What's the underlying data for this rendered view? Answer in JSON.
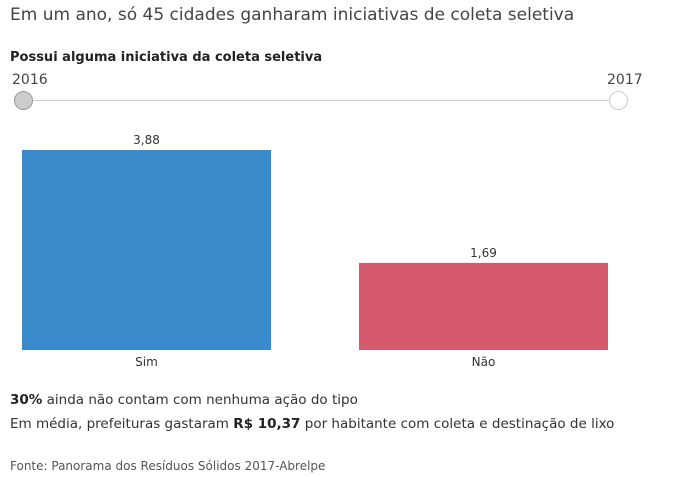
{
  "header": {
    "title": "Em um ano, só 45 cidades ganharam iniciativas de coleta seletiva",
    "subtitle": "Possui alguma iniciativa da coleta seletiva"
  },
  "year_slider": {
    "start_label": "2016",
    "end_label": "2017",
    "selected": "2016"
  },
  "chart_data": {
    "type": "bar",
    "categories": [
      "Sim",
      "Não"
    ],
    "values": [
      3.88,
      1.69
    ],
    "value_labels": [
      "3,88",
      "1,69"
    ],
    "colors": [
      "#3b8bcc",
      "#d45a6c"
    ],
    "ylim": [
      0,
      3.88
    ]
  },
  "notes": {
    "line1_bold": "30%",
    "line1_rest": " ainda não contam com nenhuma ação do tipo",
    "line2_start": "Em média, prefeituras gastaram ",
    "line2_bold": "R$ 10,37",
    "line2_end": " por habitante com coleta e destinação de lixo"
  },
  "source": "Fonte: Panorama dos Resíduos Sólidos 2017-Abrelpe"
}
